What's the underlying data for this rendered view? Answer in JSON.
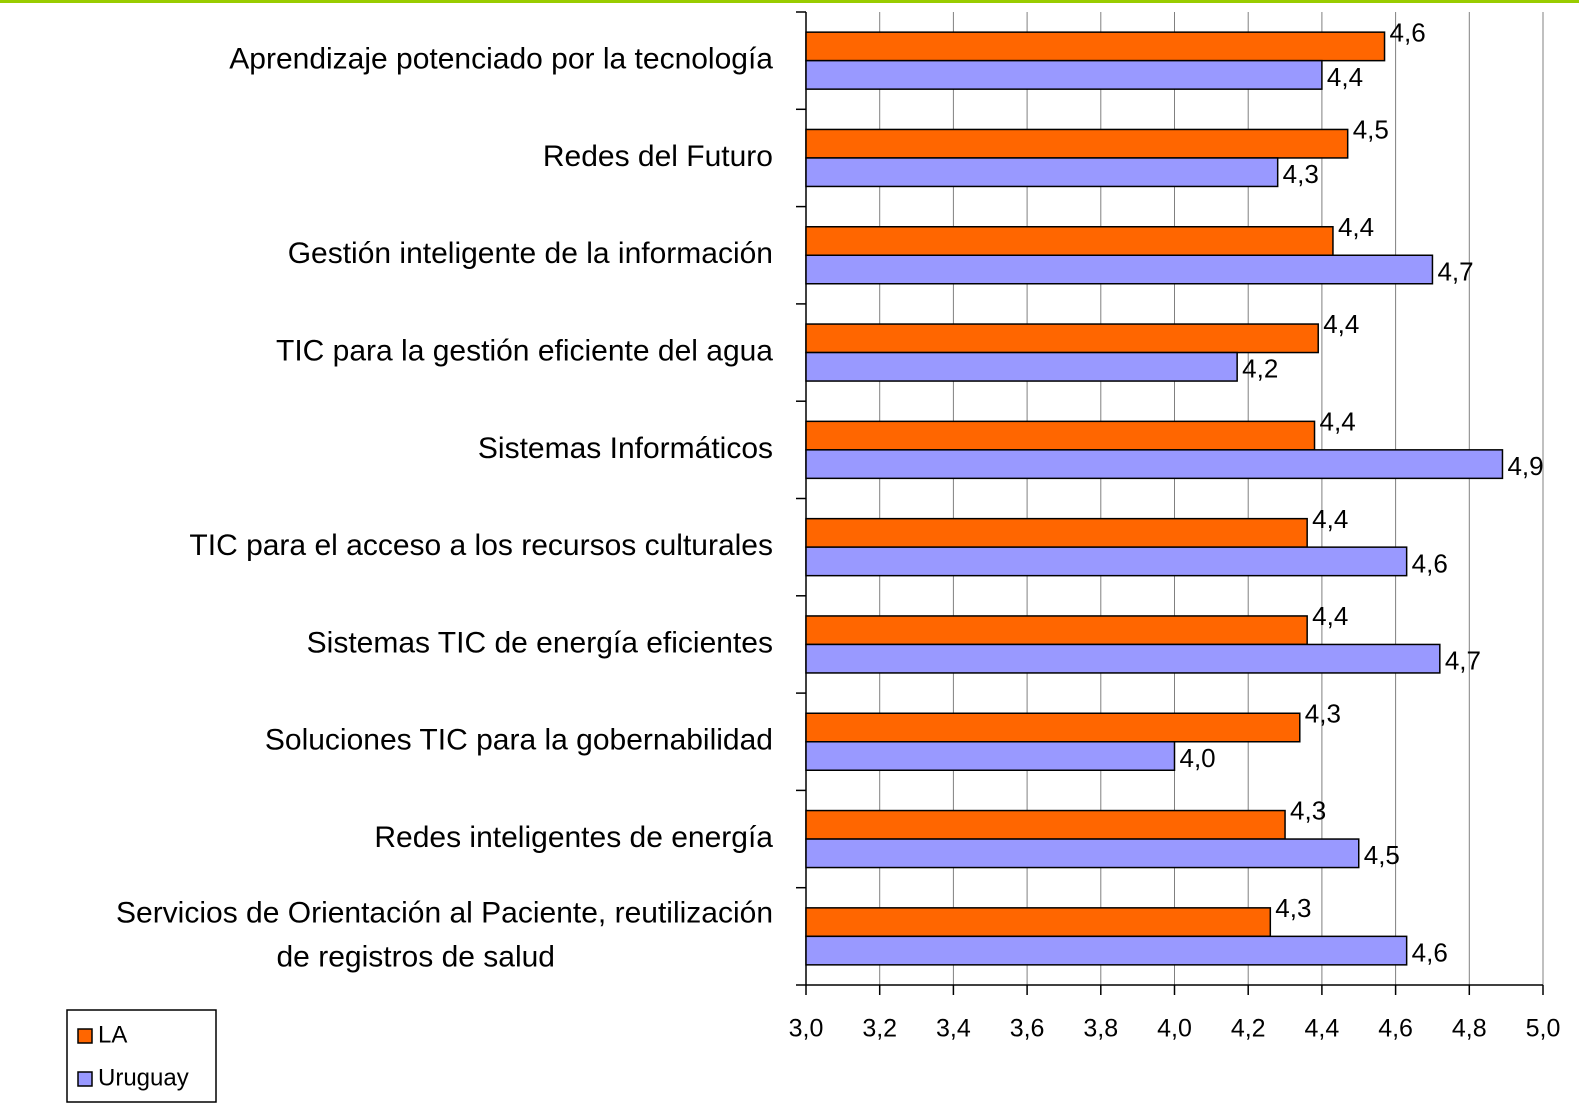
{
  "chart_data": {
    "type": "hbar",
    "categories": [
      "Aprendizaje potenciado por la tecnología",
      "Redes del Futuro",
      "Gestión inteligente de la información",
      "TIC para la gestión eficiente del agua",
      "Sistemas Informáticos",
      "TIC para el acceso a los recursos culturales",
      "Sistemas TIC de energía eficientes",
      "Soluciones TIC para la gobernabilidad",
      "Redes inteligentes de energía",
      "Servicios de Orientación al Paciente, reutilización\nde registros de salud"
    ],
    "series": [
      {
        "name": "LA",
        "color": "#ff6600",
        "values": [
          4.57,
          4.47,
          4.43,
          4.39,
          4.38,
          4.36,
          4.36,
          4.34,
          4.3,
          4.26
        ],
        "value_labels": [
          "4,6",
          "4,5",
          "4,4",
          "4,4",
          "4,4",
          "4,4",
          "4,4",
          "4,3",
          "4,3",
          "4,3"
        ]
      },
      {
        "name": "Uruguay",
        "color": "#9999ff",
        "values": [
          4.4,
          4.28,
          4.7,
          4.17,
          4.89,
          4.63,
          4.72,
          4.0,
          4.5,
          4.63
        ],
        "value_labels": [
          "4,4",
          "4,3",
          "4,7",
          "4,2",
          "4,9",
          "4,6",
          "4,7",
          "4,0",
          "4,5",
          "4,6"
        ]
      }
    ],
    "xlim": [
      3,
      5
    ],
    "xticks": [
      {
        "value": 3,
        "label": "3,0"
      },
      {
        "value": 3.2,
        "label": "3,2"
      },
      {
        "value": 3.4,
        "label": "3,4"
      },
      {
        "value": 3.6,
        "label": "3,6"
      },
      {
        "value": 3.8,
        "label": "3,8"
      },
      {
        "value": 4,
        "label": "4,0"
      },
      {
        "value": 4.2,
        "label": "4,2"
      },
      {
        "value": 4.4,
        "label": "4,4"
      },
      {
        "value": 4.6,
        "label": "4,6"
      },
      {
        "value": 4.8,
        "label": "4,8"
      },
      {
        "value": 5,
        "label": "5,0"
      }
    ],
    "grid": true,
    "legend": "bottom-left"
  }
}
